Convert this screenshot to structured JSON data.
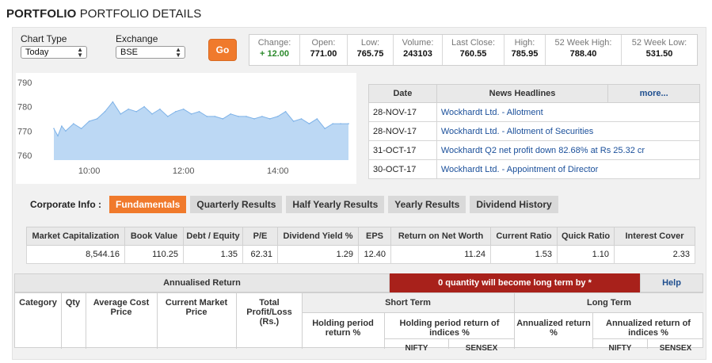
{
  "page_title": {
    "bold": "PORTFOLIO",
    "rest": "PORTFOLIO DETAILS"
  },
  "controls": {
    "chart_type_label": "Chart Type",
    "chart_type_value": "Today",
    "exchange_label": "Exchange",
    "exchange_value": "BSE",
    "go_label": "Go"
  },
  "quote": {
    "change_label": "Change:",
    "change_value": "+ 12.00",
    "open_label": "Open:",
    "open_value": "771.00",
    "low_label": "Low:",
    "low_value": "765.75",
    "volume_label": "Volume:",
    "volume_value": "243103",
    "last_close_label": "Last Close:",
    "last_close_value": "760.55",
    "high_label": "High:",
    "high_value": "785.95",
    "wk52_high_label": "52 Week High:",
    "wk52_high_value": "788.40",
    "wk52_low_label": "52 Week Low:",
    "wk52_low_value": "531.50",
    "change_color": "#2c8a2c"
  },
  "chart_data": {
    "type": "area",
    "title": "",
    "xlabel": "",
    "ylabel": "",
    "ylim": [
      758,
      790
    ],
    "y_ticks": [
      "790",
      "780",
      "770",
      "760"
    ],
    "x_ticks": [
      "10:00",
      "12:00",
      "14:00"
    ],
    "xlim": [
      "09:15",
      "15:30"
    ],
    "color": "#7fb3e8",
    "series": [
      {
        "x": [
          "09:15",
          "09:20",
          "09:25",
          "09:30",
          "09:40",
          "09:50",
          "10:00",
          "10:10",
          "10:20",
          "10:30",
          "10:40",
          "10:50",
          "11:00",
          "11:10",
          "11:20",
          "11:30",
          "11:40",
          "11:50",
          "12:00",
          "12:10",
          "12:20",
          "12:30",
          "12:40",
          "12:50",
          "13:00",
          "13:10",
          "13:20",
          "13:30",
          "13:40",
          "13:50",
          "14:00",
          "14:10",
          "14:20",
          "14:30",
          "14:40",
          "14:50",
          "15:00",
          "15:10",
          "15:20",
          "15:30"
        ],
        "values": [
          771,
          768,
          772,
          770,
          773,
          771,
          774,
          775,
          778,
          782,
          777,
          779,
          778,
          780,
          777,
          779,
          776,
          778,
          779,
          777,
          778,
          776,
          776,
          775,
          777,
          776,
          776,
          775,
          776,
          775,
          776,
          778,
          774,
          775,
          773,
          775,
          771,
          773,
          773,
          773
        ]
      }
    ]
  },
  "news": {
    "col_date": "Date",
    "col_headline": "News Headlines",
    "more": "more...",
    "rows": [
      {
        "date": "28-NOV-17",
        "headline": "Wockhardt Ltd. - Allotment"
      },
      {
        "date": "28-NOV-17",
        "headline": "Wockhardt Ltd. - Allotment of Securities"
      },
      {
        "date": "31-OCT-17",
        "headline": "Wockhardt Q2 net profit down 82.68% at Rs 25.32 cr"
      },
      {
        "date": "30-OCT-17",
        "headline": "Wockhardt Ltd. - Appointment of Director"
      }
    ]
  },
  "corporate": {
    "label": "Corporate Info :",
    "tabs": [
      "Fundamentals",
      "Quarterly Results",
      "Half Yearly Results",
      "Yearly Results",
      "Dividend History"
    ],
    "active_tab": "Fundamentals",
    "accent": "#f07a2c"
  },
  "fundamentals": {
    "headers": [
      "Market Capitalization",
      "Book Value",
      "Debt / Equity",
      "P/E",
      "Dividend Yield %",
      "EPS",
      "Return on Net Worth",
      "Current Ratio",
      "Quick Ratio",
      "Interest Cover"
    ],
    "values": [
      "8,544.16",
      "110.25",
      "1.35",
      "62.31",
      "1.29",
      "12.40",
      "11.24",
      "1.53",
      "1.10",
      "2.33"
    ]
  },
  "portfolio": {
    "annualised_return": "Annualised Return",
    "long_term_notice": "0 quantity will become long term by *",
    "help": "Help",
    "notice_color": "#a8211b",
    "col_category": "Category",
    "col_qty": "Qty",
    "col_avg_cost": "Average Cost Price",
    "col_current_price": "Current Market Price",
    "col_total_pl": "Total Profit/Loss (Rs.)",
    "short_term": "Short Term",
    "long_term": "Long Term",
    "st_holding": "Holding period return %",
    "st_indices": "Holding period return of indices %",
    "lt_annualized": "Annualized return %",
    "lt_indices": "Annualized return of indices %",
    "nifty": "NIFTY",
    "sensex": "SENSEX"
  }
}
